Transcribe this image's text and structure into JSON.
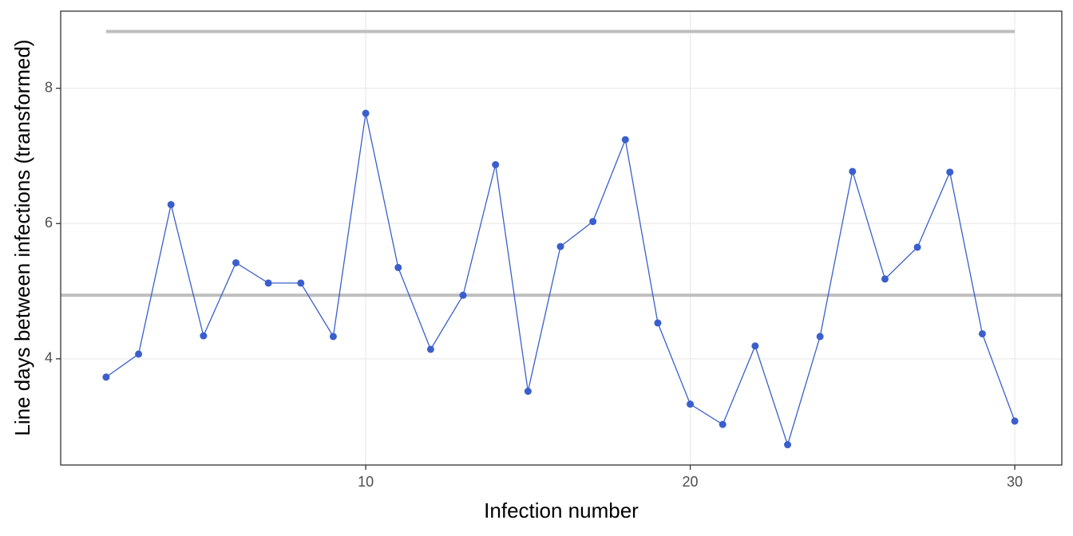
{
  "chart_data": {
    "type": "line",
    "x_label": "Infection number",
    "y_label": "Line days between infections (transformed)",
    "x": [
      2,
      3,
      4,
      5,
      6,
      7,
      8,
      9,
      10,
      11,
      12,
      13,
      14,
      15,
      16,
      17,
      18,
      19,
      20,
      21,
      22,
      23,
      24,
      25,
      26,
      27,
      28,
      29,
      30
    ],
    "series": [
      {
        "color": "#3a5fcd",
        "values": [
          3.73,
          4.07,
          6.28,
          4.34,
          5.42,
          5.12,
          5.12,
          4.33,
          7.63,
          5.35,
          4.14,
          4.94,
          6.87,
          3.52,
          5.66,
          6.03,
          7.24,
          4.53,
          3.33,
          3.03,
          4.19,
          2.73,
          4.33,
          6.77,
          5.18,
          5.65,
          6.76,
          4.37,
          3.08
        ]
      }
    ],
    "reference_lines": [
      {
        "y": 8.84,
        "x": [
          2,
          30
        ],
        "color": "#bebebe"
      },
      {
        "y": 4.94,
        "color": "#bebebe"
      }
    ],
    "xlim": [
      0.6,
      31.45
    ],
    "xticks": [
      10,
      20,
      30
    ],
    "ylim": [
      2.43,
      9.14
    ],
    "yticks": [
      4,
      6,
      8
    ],
    "grid": true
  }
}
